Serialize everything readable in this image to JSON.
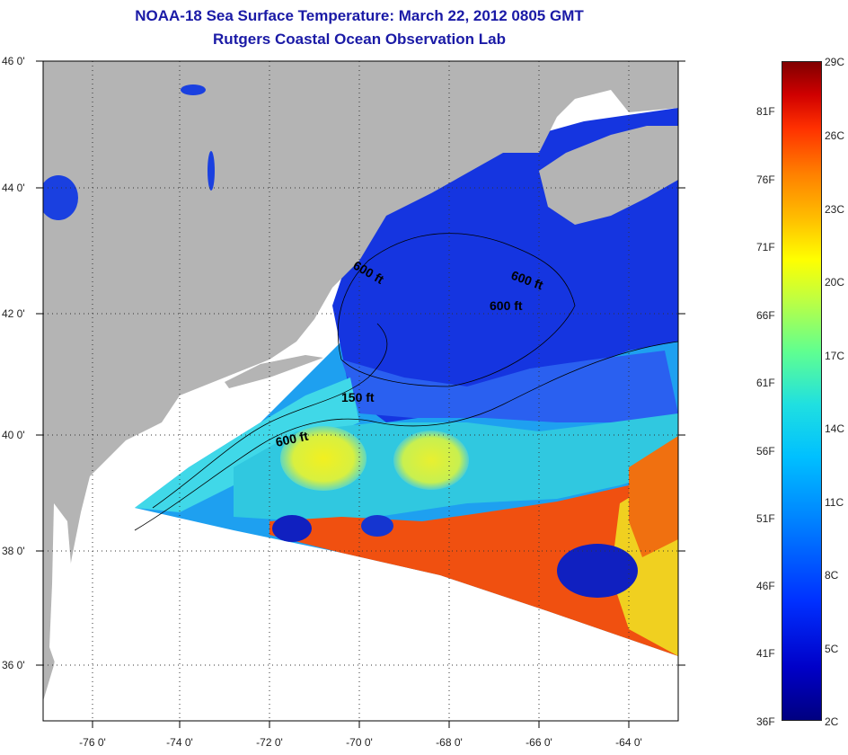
{
  "title": "NOAA-18 Sea Surface Temperature:  March 22, 2012 0805 GMT",
  "subtitle": "Rutgers Coastal Ocean Observation Lab",
  "lat_labels": [
    "46 0'",
    "44 0'",
    "42 0'",
    "40 0'",
    "38 0'",
    "36 0'"
  ],
  "lon_labels": [
    "-76 0'",
    "-74 0'",
    "-72 0'",
    "-70 0'",
    "-68 0'",
    "-66 0'",
    "-64 0'"
  ],
  "contour_labels": [
    "600 ft",
    "600 ft",
    "600 ft",
    "150 ft",
    "600 ft"
  ],
  "colorbar": {
    "fahrenheit": [
      "81F",
      "76F",
      "71F",
      "66F",
      "61F",
      "56F",
      "51F",
      "46F",
      "41F",
      "36F"
    ],
    "celsius": [
      "29C",
      "26C",
      "23C",
      "20C",
      "17C",
      "14C",
      "11C",
      "8C",
      "5C",
      "2C"
    ]
  },
  "colors": {
    "land": "#b4b4b4",
    "title": "#1a1aa6",
    "no_data": "#ffffff"
  }
}
